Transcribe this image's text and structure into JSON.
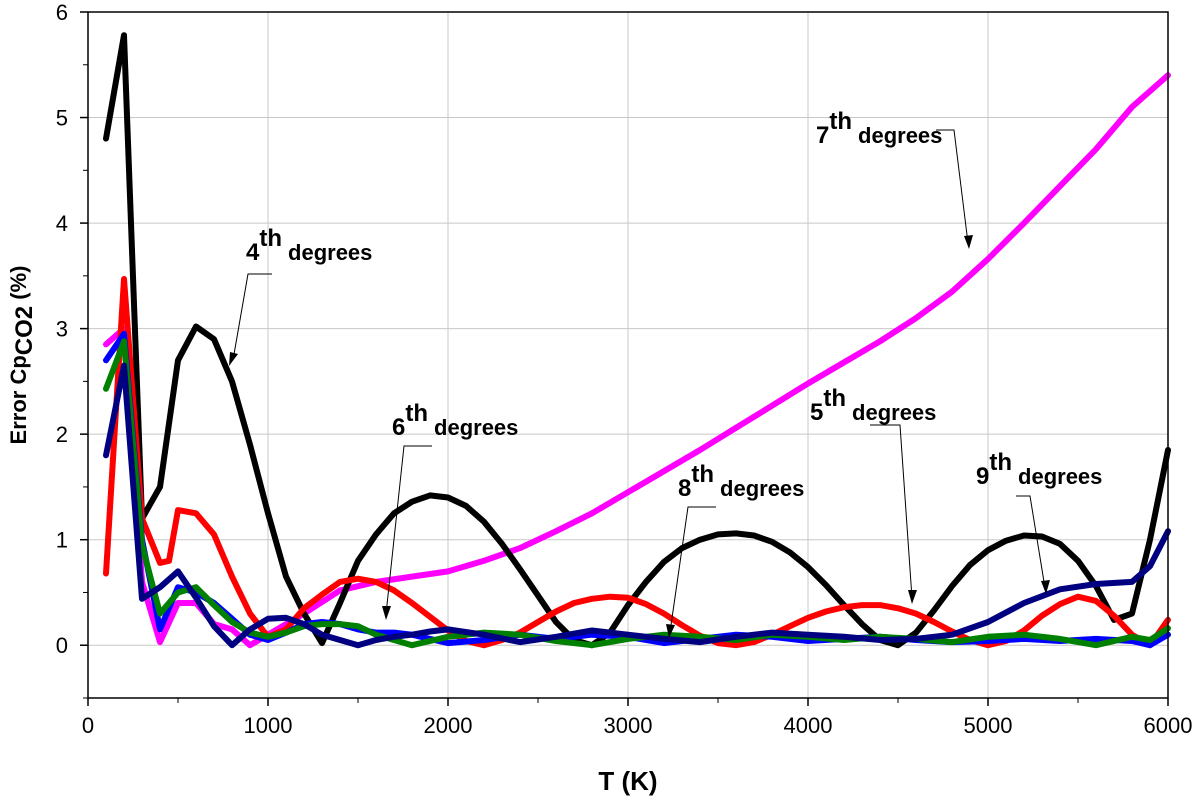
{
  "chart_data": {
    "type": "line",
    "xlabel": "T (K)",
    "ylabel": "Error Cp",
    "ylabel_sub": "CO2",
    "ylabel_unit": " (%)",
    "xlim": [
      0,
      6000
    ],
    "ylim": [
      -0.5,
      6
    ],
    "xticks": [
      "0",
      "1000",
      "2000",
      "3000",
      "4000",
      "5000",
      "6000"
    ],
    "yticks": [
      "0",
      "1",
      "2",
      "3",
      "4",
      "5",
      "6"
    ],
    "grid": true,
    "series": [
      {
        "color": "#ff00ff",
        "x": [
          100,
          200,
          300,
          400,
          500,
          600,
          700,
          800,
          900,
          1000,
          1200,
          1400,
          1600,
          1800,
          2000,
          2200,
          2400,
          2600,
          2800,
          3000,
          3200,
          3400,
          3600,
          3800,
          4000,
          4200,
          4400,
          4600,
          4800,
          5000,
          5200,
          5400,
          5600,
          5800,
          6000
        ],
        "y": [
          2.85,
          3.0,
          0.6,
          0.03,
          0.4,
          0.4,
          0.2,
          0.15,
          0.0,
          0.1,
          0.3,
          0.52,
          0.6,
          0.65,
          0.7,
          0.8,
          0.92,
          1.08,
          1.25,
          1.45,
          1.65,
          1.85,
          2.06,
          2.27,
          2.48,
          2.68,
          2.88,
          3.1,
          3.35,
          3.66,
          4.0,
          4.35,
          4.7,
          5.1,
          5.4
        ]
      },
      {
        "color": "#000000",
        "x": [
          100,
          200,
          300,
          400,
          500,
          600,
          700,
          800,
          900,
          1000,
          1100,
          1200,
          1300,
          1400,
          1500,
          1600,
          1700,
          1800,
          1900,
          2000,
          2100,
          2200,
          2300,
          2400,
          2500,
          2600,
          2700,
          2800,
          2900,
          3000,
          3100,
          3200,
          3300,
          3400,
          3500,
          3600,
          3700,
          3800,
          3900,
          4000,
          4100,
          4200,
          4300,
          4400,
          4500,
          4600,
          4700,
          4800,
          4900,
          5000,
          5100,
          5200,
          5300,
          5400,
          5500,
          5600,
          5700,
          5800,
          5900,
          6000
        ],
        "y": [
          4.8,
          5.78,
          1.2,
          1.5,
          2.7,
          3.02,
          2.9,
          2.5,
          1.9,
          1.25,
          0.65,
          0.3,
          0.02,
          0.4,
          0.8,
          1.05,
          1.25,
          1.36,
          1.42,
          1.4,
          1.32,
          1.17,
          0.96,
          0.72,
          0.47,
          0.22,
          0.05,
          0.0,
          0.12,
          0.38,
          0.6,
          0.79,
          0.92,
          1.0,
          1.05,
          1.06,
          1.04,
          0.98,
          0.88,
          0.74,
          0.57,
          0.38,
          0.2,
          0.05,
          0.0,
          0.12,
          0.33,
          0.56,
          0.76,
          0.9,
          0.99,
          1.04,
          1.03,
          0.96,
          0.8,
          0.56,
          0.24,
          0.3,
          1.0,
          1.85
        ]
      },
      {
        "color": "#ff0000",
        "x": [
          100,
          200,
          300,
          400,
          450,
          500,
          600,
          700,
          800,
          900,
          1000,
          1100,
          1200,
          1300,
          1400,
          1500,
          1600,
          1700,
          1800,
          1900,
          2000,
          2100,
          2200,
          2300,
          2400,
          2500,
          2600,
          2700,
          2800,
          2900,
          3000,
          3100,
          3200,
          3300,
          3400,
          3500,
          3600,
          3700,
          3800,
          3900,
          4000,
          4100,
          4200,
          4300,
          4400,
          4500,
          4600,
          4700,
          4800,
          4900,
          5000,
          5100,
          5200,
          5300,
          5400,
          5500,
          5600,
          5700,
          5800,
          5900,
          6000
        ],
        "y": [
          0.68,
          3.47,
          1.2,
          0.78,
          0.8,
          1.28,
          1.25,
          1.05,
          0.65,
          0.3,
          0.08,
          0.15,
          0.35,
          0.48,
          0.6,
          0.63,
          0.6,
          0.52,
          0.4,
          0.27,
          0.14,
          0.04,
          0.0,
          0.05,
          0.12,
          0.22,
          0.32,
          0.4,
          0.44,
          0.46,
          0.45,
          0.39,
          0.3,
          0.19,
          0.09,
          0.02,
          0.0,
          0.03,
          0.1,
          0.18,
          0.26,
          0.32,
          0.36,
          0.38,
          0.38,
          0.35,
          0.3,
          0.22,
          0.13,
          0.05,
          0.0,
          0.04,
          0.14,
          0.28,
          0.39,
          0.46,
          0.42,
          0.28,
          0.1,
          0.0,
          0.24
        ]
      },
      {
        "color": "#0000ff",
        "x": [
          100,
          200,
          300,
          400,
          500,
          600,
          700,
          800,
          900,
          1000,
          1100,
          1200,
          1300,
          1400,
          1500,
          1600,
          1700,
          1800,
          1900,
          2000,
          2200,
          2400,
          2600,
          2800,
          3000,
          3200,
          3400,
          3600,
          3800,
          4000,
          4200,
          4400,
          4600,
          4800,
          5000,
          5200,
          5400,
          5600,
          5800,
          5900,
          6000
        ],
        "y": [
          2.7,
          2.95,
          1.0,
          0.15,
          0.55,
          0.5,
          0.4,
          0.25,
          0.1,
          0.05,
          0.12,
          0.2,
          0.22,
          0.2,
          0.15,
          0.12,
          0.12,
          0.1,
          0.06,
          0.02,
          0.05,
          0.1,
          0.06,
          0.1,
          0.08,
          0.02,
          0.06,
          0.1,
          0.08,
          0.04,
          0.06,
          0.08,
          0.05,
          0.03,
          0.04,
          0.06,
          0.04,
          0.06,
          0.04,
          0.0,
          0.1
        ]
      },
      {
        "color": "#008000",
        "x": [
          100,
          200,
          300,
          400,
          500,
          600,
          700,
          800,
          900,
          1000,
          1100,
          1200,
          1300,
          1400,
          1500,
          1600,
          1700,
          1800,
          1900,
          2000,
          2200,
          2400,
          2600,
          2800,
          3000,
          3200,
          3400,
          3600,
          3800,
          4000,
          4200,
          4400,
          4600,
          4800,
          5000,
          5200,
          5400,
          5600,
          5800,
          5900,
          6000
        ],
        "y": [
          2.43,
          2.88,
          0.95,
          0.3,
          0.5,
          0.55,
          0.38,
          0.22,
          0.12,
          0.08,
          0.12,
          0.18,
          0.2,
          0.2,
          0.18,
          0.1,
          0.05,
          0.0,
          0.04,
          0.08,
          0.12,
          0.1,
          0.04,
          0.0,
          0.06,
          0.1,
          0.08,
          0.05,
          0.1,
          0.08,
          0.05,
          0.08,
          0.06,
          0.03,
          0.08,
          0.1,
          0.06,
          0.0,
          0.08,
          0.05,
          0.16
        ]
      },
      {
        "color": "#000080",
        "x": [
          100,
          200,
          300,
          400,
          500,
          600,
          700,
          800,
          900,
          1000,
          1100,
          1200,
          1300,
          1400,
          1500,
          1600,
          1700,
          1800,
          1900,
          2000,
          2200,
          2400,
          2600,
          2800,
          3000,
          3200,
          3400,
          3600,
          3800,
          4000,
          4200,
          4400,
          4600,
          4800,
          5000,
          5200,
          5400,
          5600,
          5800,
          5900,
          6000
        ],
        "y": [
          1.8,
          2.65,
          0.44,
          0.55,
          0.7,
          0.45,
          0.18,
          0.0,
          0.15,
          0.25,
          0.26,
          0.2,
          0.1,
          0.05,
          0.0,
          0.05,
          0.08,
          0.1,
          0.13,
          0.15,
          0.1,
          0.03,
          0.08,
          0.14,
          0.1,
          0.06,
          0.03,
          0.08,
          0.12,
          0.1,
          0.08,
          0.05,
          0.06,
          0.1,
          0.22,
          0.4,
          0.53,
          0.58,
          0.6,
          0.75,
          1.08
        ]
      }
    ]
  },
  "annotations": [
    {
      "sup": "4",
      "th": "th",
      "text": "degrees"
    },
    {
      "sup": "6",
      "th": "th",
      "text": "degrees"
    },
    {
      "sup": "8",
      "th": "th",
      "text": "degrees"
    },
    {
      "sup": "5",
      "th": "th",
      "text": "degrees"
    },
    {
      "sup": "7",
      "th": "th",
      "text": "degrees"
    },
    {
      "sup": "9",
      "th": "th",
      "text": "degrees"
    }
  ]
}
